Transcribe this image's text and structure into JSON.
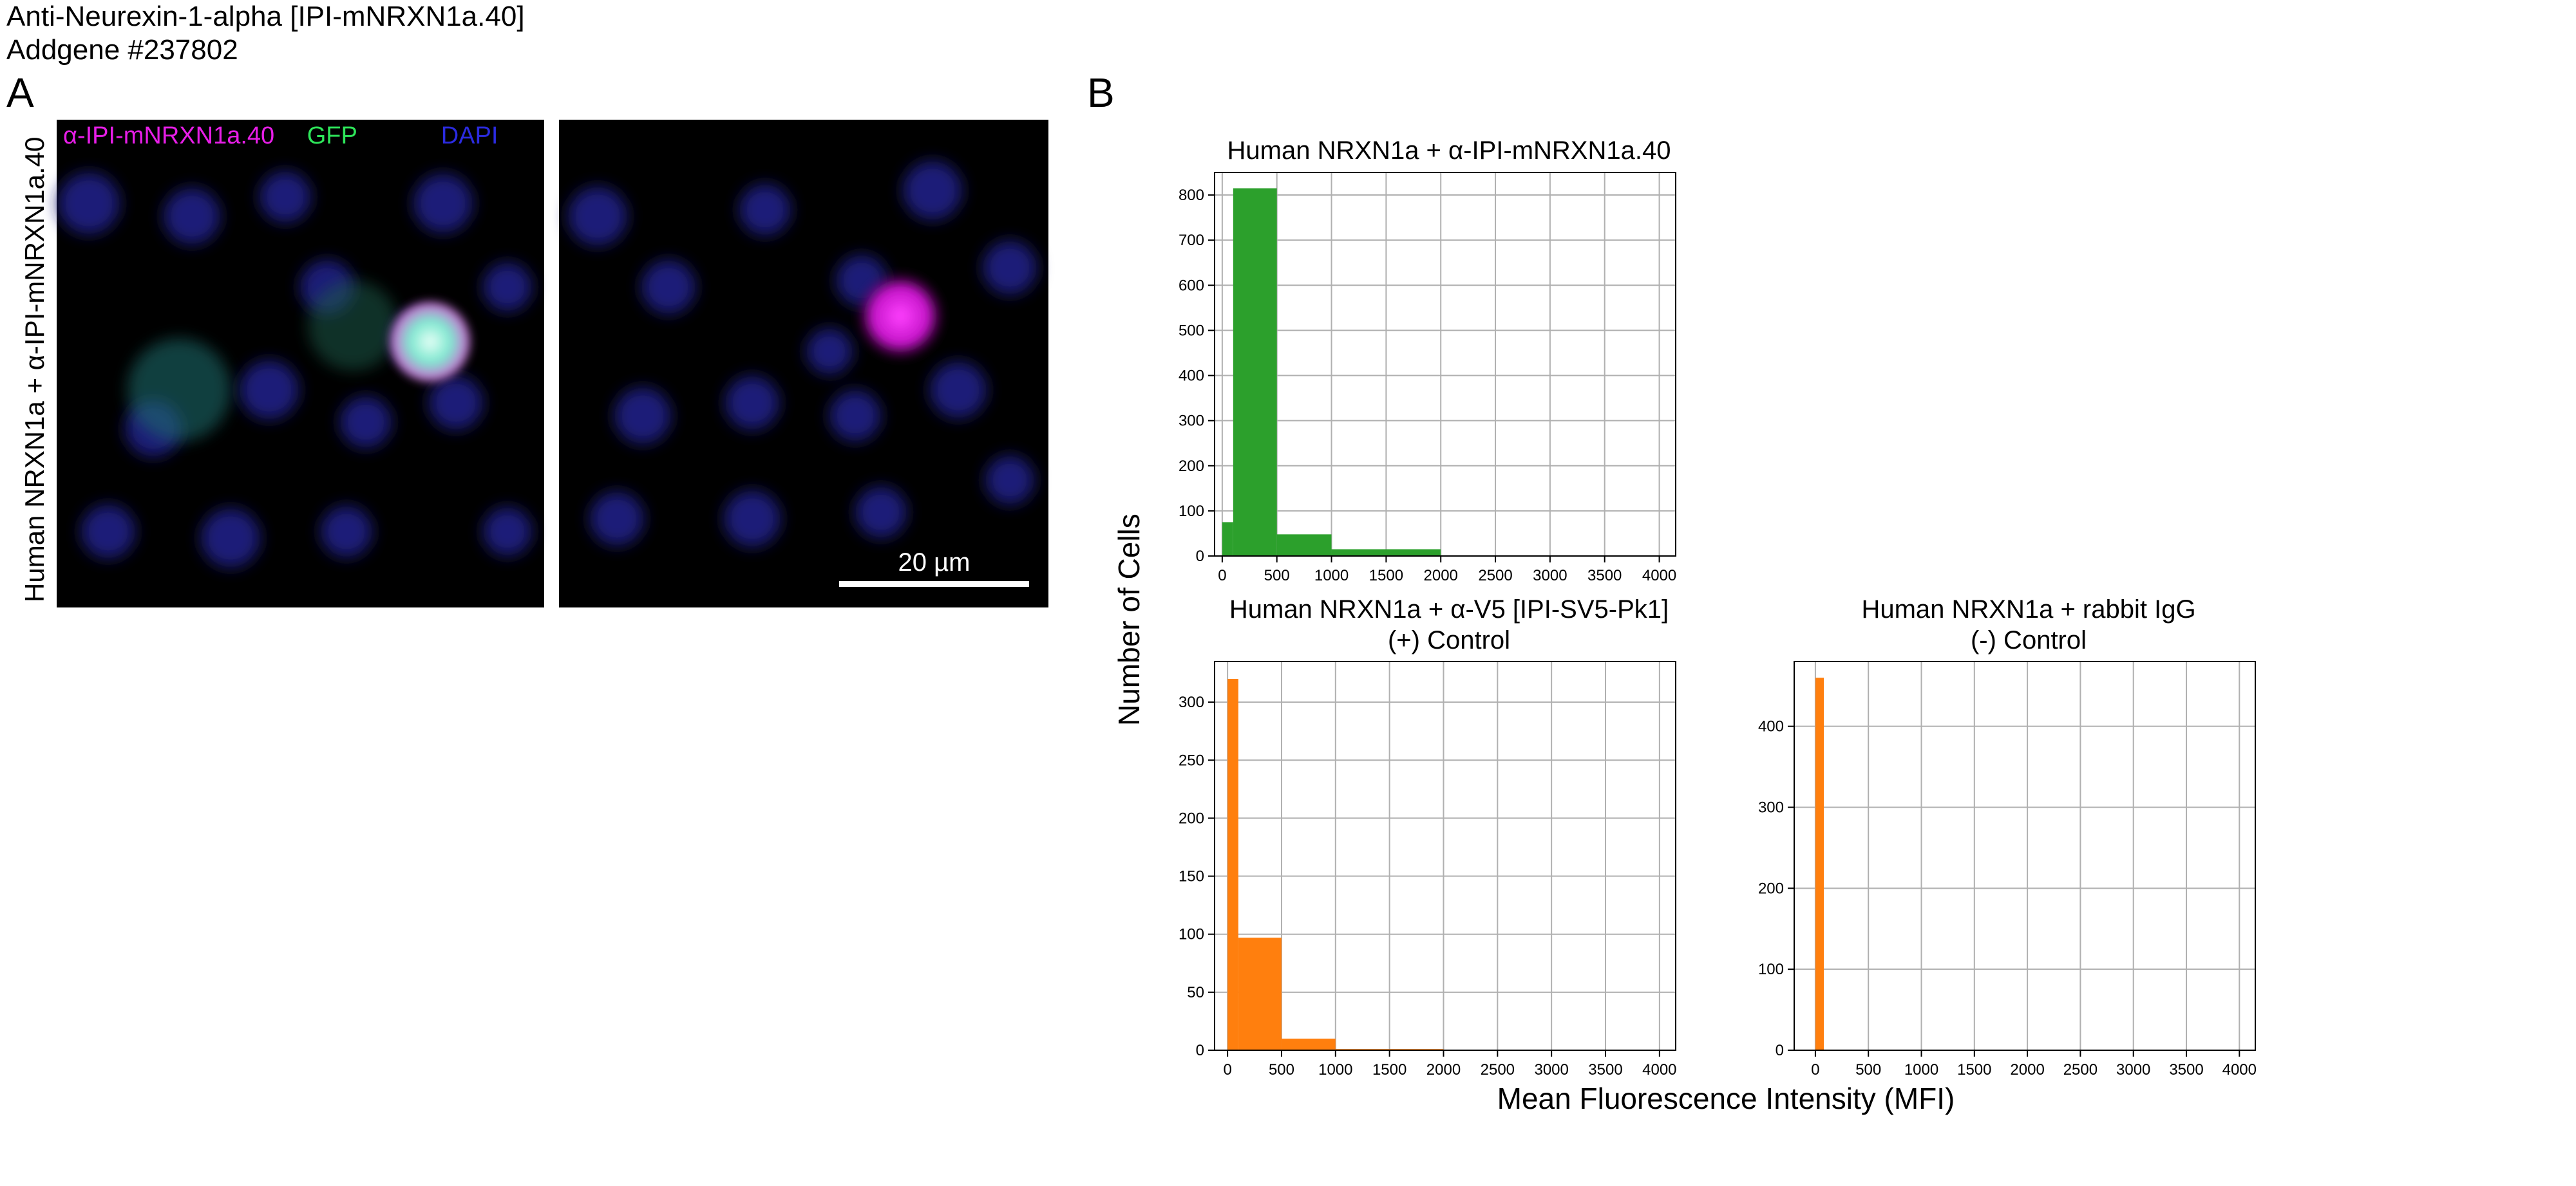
{
  "header": {
    "line1": "Anti-Neurexin-1-alpha [IPI-mNRXN1a.40]",
    "line2": "Addgene #237802"
  },
  "panel_a": {
    "letter": "A",
    "row_label": "Human NRXN1a + α-IPI-mNRXN1a.40",
    "channels": [
      {
        "name": "α-IPI-mNRXN1a.40",
        "color": "#e81ee8"
      },
      {
        "name": "GFP",
        "color": "#2ee65a"
      },
      {
        "name": "DAPI",
        "color": "#2222dd"
      }
    ],
    "scale_bar": "20 µm"
  },
  "panel_b": {
    "letter": "B",
    "ylabel": "Number of Cells",
    "xlabel": "Mean Fluorescence Intensity (MFI)"
  },
  "chart_data": [
    {
      "type": "bar",
      "title": "Human NRXN1a + α-IPI-mNRXN1a.40",
      "xlabel": "Mean Fluorescence Intensity (MFI)",
      "ylabel": "Number of Cells",
      "color": "#2ca02c",
      "xlim": [
        -70,
        4150
      ],
      "ylim": [
        0,
        850
      ],
      "xticks": [
        0,
        500,
        1000,
        1500,
        2000,
        2500,
        3000,
        3500,
        4000
      ],
      "yticks": [
        0,
        100,
        200,
        300,
        400,
        500,
        600,
        700,
        800
      ],
      "grid": true,
      "bins": [
        {
          "x0": 0,
          "x1": 100,
          "count": 75
        },
        {
          "x0": 100,
          "x1": 500,
          "count": 815
        },
        {
          "x0": 500,
          "x1": 1000,
          "count": 48
        },
        {
          "x0": 1000,
          "x1": 2000,
          "count": 15
        }
      ]
    },
    {
      "type": "bar",
      "title": "Human NRXN1a + α-V5 [IPI-SV5-Pk1]",
      "subtitle": "(+) Control",
      "xlabel": "Mean Fluorescence Intensity (MFI)",
      "ylabel": "Number of Cells",
      "color": "#ff7f0e",
      "xlim": [
        -120,
        4150
      ],
      "ylim": [
        0,
        335
      ],
      "xticks": [
        0,
        500,
        1000,
        1500,
        2000,
        2500,
        3000,
        3500,
        4000
      ],
      "yticks": [
        0,
        50,
        100,
        150,
        200,
        250,
        300
      ],
      "grid": true,
      "bins": [
        {
          "x0": 0,
          "x1": 100,
          "count": 320
        },
        {
          "x0": 100,
          "x1": 500,
          "count": 97
        },
        {
          "x0": 500,
          "x1": 1000,
          "count": 10
        },
        {
          "x0": 1000,
          "x1": 2000,
          "count": 1
        }
      ]
    },
    {
      "type": "bar",
      "title": "Human NRXN1a + rabbit IgG",
      "subtitle": "(-) Control",
      "xlabel": "Mean Fluorescence Intensity (MFI)",
      "ylabel": "Number of Cells",
      "color": "#ff7f0e",
      "xlim": [
        -200,
        4150
      ],
      "ylim": [
        0,
        480
      ],
      "xticks": [
        0,
        500,
        1000,
        1500,
        2000,
        2500,
        3000,
        3500,
        4000
      ],
      "yticks": [
        0,
        100,
        200,
        300,
        400
      ],
      "grid": true,
      "bins": [
        {
          "x0": 0,
          "x1": 80,
          "count": 460
        }
      ]
    }
  ]
}
